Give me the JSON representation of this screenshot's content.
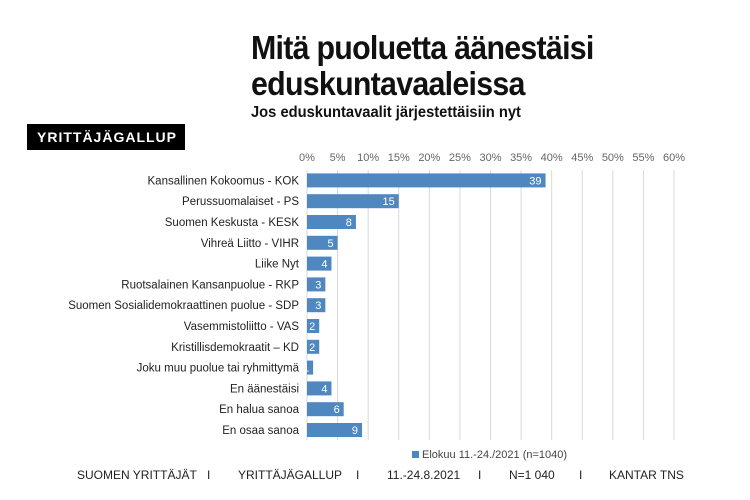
{
  "header": {
    "title_line1": "Mitä puoluetta äänestäisi",
    "title_line2": "eduskuntavaaleissa",
    "subtitle": "Jos eduskuntavaalit järjestettäisiin nyt",
    "brand": "YRITTÄJÄGALLUP"
  },
  "chart_data": {
    "type": "bar",
    "orientation": "horizontal",
    "categories": [
      "Kansallinen Kokoomus - KOK",
      "Perussuomalaiset - PS",
      "Suomen Keskusta - KESK",
      "Vihreä Liitto - VIHR",
      "Liike Nyt",
      "Ruotsalainen Kansanpuolue - RKP",
      "Suomen Sosialidemokraattinen puolue - SDP",
      "Vasemmistoliitto - VAS",
      "Kristillisdemokraatit  – KD",
      "Joku muu puolue tai ryhmittymä",
      "En äänestäisi",
      "En halua sanoa",
      "En osaa sanoa"
    ],
    "series": [
      {
        "name": "Elokuu 11.-24./2021 (n=1040)",
        "values": [
          39,
          15,
          8,
          5,
          4,
          3,
          3,
          2,
          2,
          1,
          4,
          6,
          9
        ],
        "color": "#4f87c1"
      }
    ],
    "xlim": [
      0,
      60
    ],
    "ticks": [
      "0%",
      "5%",
      "10%",
      "15%",
      "20%",
      "25%",
      "30%",
      "35%",
      "40%",
      "45%",
      "50%",
      "55%",
      "60%"
    ],
    "grid": true,
    "legend": "bottom"
  },
  "footer": {
    "items": [
      "SUOMEN YRITTÄJÄT",
      "I",
      "YRITTÄJÄGALLUP",
      "I",
      "11.-24.8.2021",
      "I",
      "N=1 040",
      "I",
      "KANTAR TNS"
    ]
  }
}
